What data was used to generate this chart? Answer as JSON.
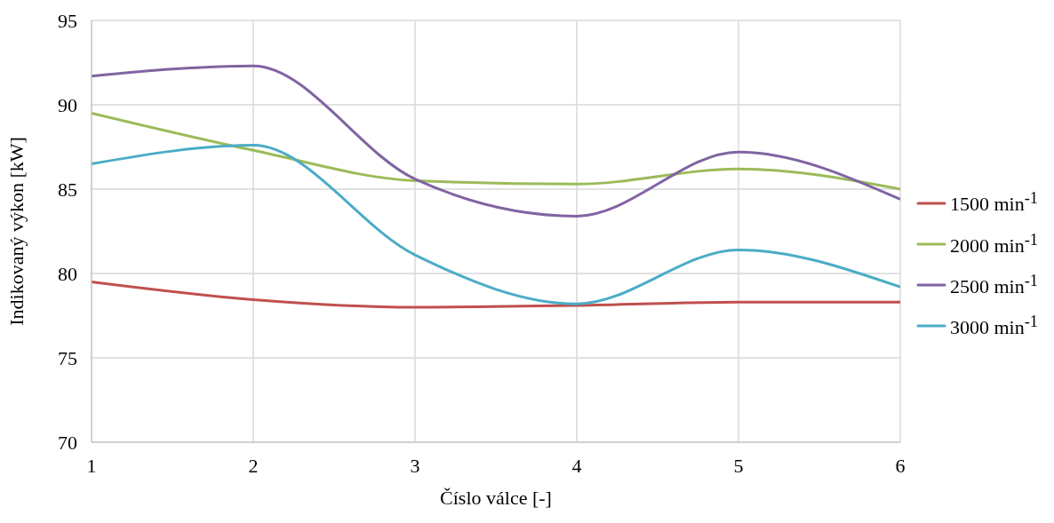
{
  "chart_data": {
    "type": "line",
    "xlabel": "Číslo válce [-]",
    "ylabel": "Indikovaný výkon [kW]",
    "x": [
      1,
      2,
      3,
      4,
      5,
      6
    ],
    "series": [
      {
        "name": "1500 min$^{-1}$",
        "color": "#c0504d",
        "values": [
          79.5,
          78.45,
          78.0,
          78.1,
          78.3,
          78.3
        ]
      },
      {
        "name": "2000 min$^{-1}$",
        "color": "#9bbb59",
        "values": [
          89.5,
          87.3,
          85.5,
          85.3,
          86.2,
          85.0
        ]
      },
      {
        "name": "2500 min$^{-1}$",
        "color": "#8064a2",
        "values": [
          91.7,
          92.3,
          85.6,
          83.4,
          87.2,
          84.4
        ]
      },
      {
        "name": "3000 min$^{-1}$",
        "color": "#4bacc6",
        "values": [
          86.5,
          87.6,
          81.1,
          78.2,
          81.4,
          79.2
        ]
      }
    ],
    "xlim": [
      1,
      6
    ],
    "xticks": [
      1,
      2,
      3,
      4,
      5,
      6
    ],
    "ylim": [
      70,
      95
    ],
    "yticks": [
      70,
      75,
      80,
      85,
      90,
      95
    ],
    "grid": true,
    "legend": "right",
    "marker": "none",
    "line_style": "solid"
  }
}
